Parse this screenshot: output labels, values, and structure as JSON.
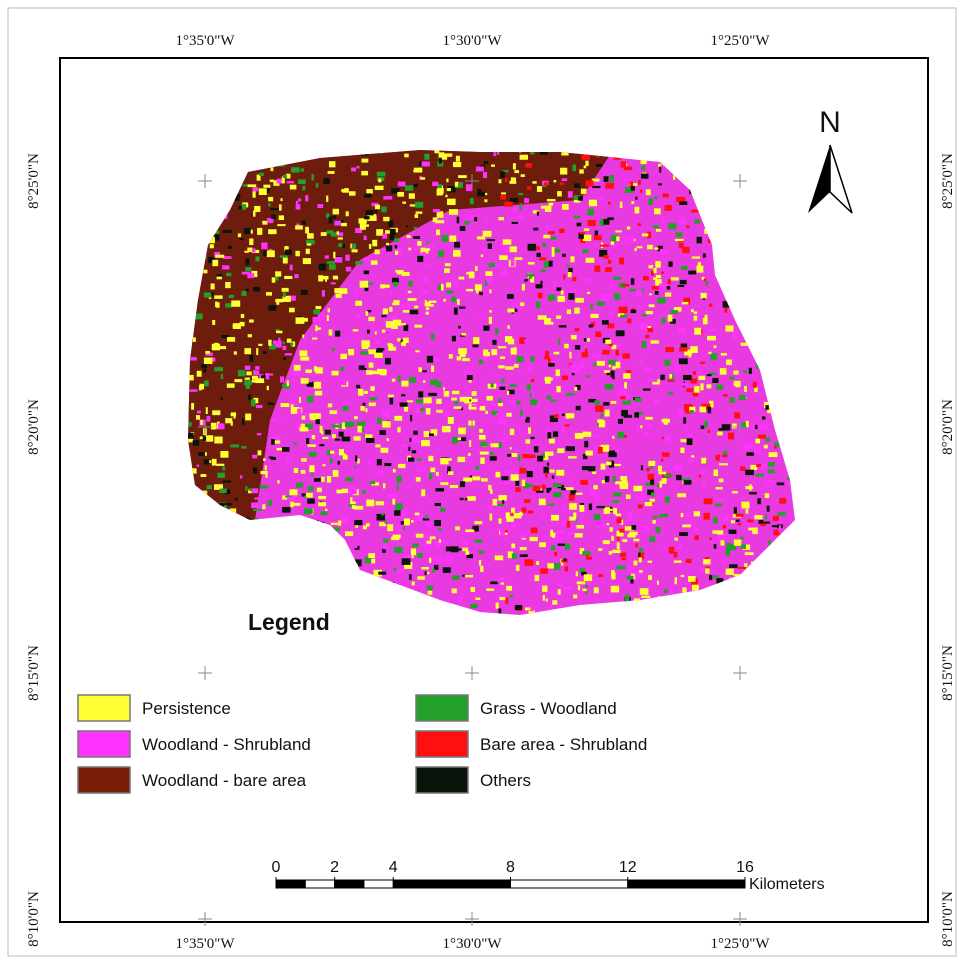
{
  "map": {
    "longitudes": [
      "1°35'0\"W",
      "1°30'0\"W",
      "1°25'0\"W"
    ],
    "latitudes": [
      "8°25'0\"N",
      "8°20'0\"N",
      "8°15'0\"N",
      "8°10'0\"N"
    ],
    "north": "N",
    "legend": {
      "title": "Legend",
      "items": [
        {
          "label": "Persistence",
          "color": "#ffff33"
        },
        {
          "label": "Woodland - Shrubland",
          "color": "#ff33ff"
        },
        {
          "label": "Woodland - bare area",
          "color": "#7a1e0a"
        },
        {
          "label": "Grass - Woodland",
          "color": "#22a02a"
        },
        {
          "label": "Bare area - Shrubland",
          "color": "#ff1010"
        },
        {
          "label": "Others",
          "color": "#0a140a"
        }
      ]
    },
    "scale_bar": {
      "ticks": [
        0,
        2,
        4,
        8,
        12,
        16
      ],
      "unit": "Kilometers"
    }
  }
}
